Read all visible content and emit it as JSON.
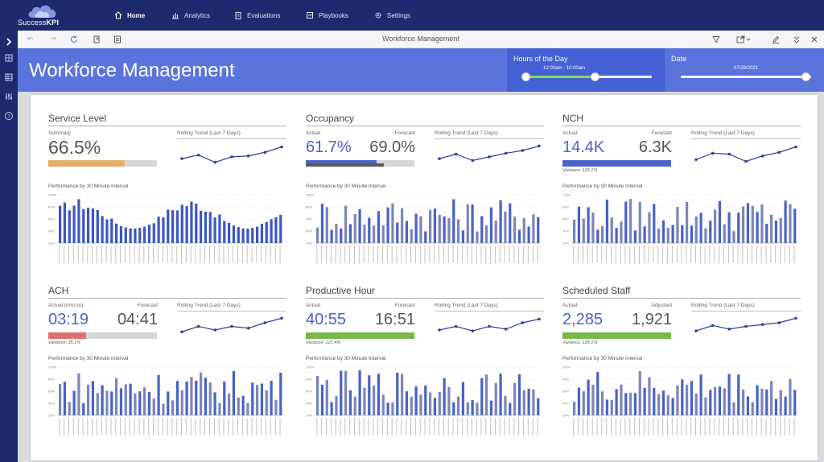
{
  "app": {
    "logo_prefix": "Success",
    "logo_bold": "KPI"
  },
  "nav": [
    {
      "label": "Home",
      "icon": "home-icon",
      "active": true
    },
    {
      "label": "Analytics",
      "icon": "bar-chart-icon",
      "active": false
    },
    {
      "label": "Evaluations",
      "icon": "clipboard-icon",
      "active": false
    },
    {
      "label": "Playbooks",
      "icon": "book-icon",
      "active": false
    },
    {
      "label": "Settings",
      "icon": "gear-icon",
      "active": false
    }
  ],
  "toolbar": {
    "title": "Workforce Management"
  },
  "header": {
    "title": "Workforce Management",
    "hours": {
      "label": "Hours of the Day",
      "range": "12:00am - 10:00am",
      "start": 0.0,
      "end": 0.55
    },
    "date": {
      "label": "Date",
      "value": "07/28/2021",
      "position": 1.0
    }
  },
  "colors": {
    "accent_blue": "#4a64c8",
    "gold": "#e3b06b",
    "red": "#e07070",
    "green": "#78b84a",
    "dark": "#5a5a5a",
    "nav": "#1e2a6e",
    "header": "#5b73dc"
  },
  "cards": [
    {
      "title": "Service Level",
      "label_left": "Summary",
      "value_left": "66.5%",
      "label_right": "",
      "value_right": "",
      "bar_fraction": 0.7,
      "bar_color": "gold",
      "variance": "",
      "trend_label": "Rolling Trend (Last 7 Days)",
      "trend": [
        30,
        38,
        22,
        34,
        36,
        44,
        56
      ],
      "perf_label": "Performance by 30 Minute Interval",
      "yticks": [
        "100%",
        "80%",
        "60%",
        "40%",
        "20%"
      ]
    },
    {
      "title": "Occupancy",
      "label_left": "Actual",
      "value_left": "61.7%",
      "label_right": "Forecast",
      "value_right": "69.0%",
      "bar_fraction": 0.65,
      "bar_color": "blue",
      "variance": "",
      "trend_label": "Rolling Trend (Last 7 Days)",
      "trend": [
        30,
        40,
        26,
        34,
        42,
        48,
        58
      ],
      "perf_label": "Performance by 30 Minute Interval",
      "yticks": [
        "100%",
        "80%",
        "60%",
        "40%",
        "20%"
      ]
    },
    {
      "title": "NCH",
      "label_left": "Actual",
      "value_left": "14.4K",
      "label_right": "Forecast",
      "value_right": "6.3K",
      "bar_fraction": 1.0,
      "bar_color": "blue",
      "variance": "Variance: 129.1%",
      "trend_label": "Rolling Trend (Last 7 Days)",
      "trend": [
        28,
        42,
        40,
        24,
        36,
        44,
        56
      ],
      "perf_label": "Performance by 30 Minute Interval",
      "yticks": [
        "100%",
        "80%",
        "60%",
        "40%",
        "20%"
      ]
    },
    {
      "title": "ACH",
      "label_left": "Actual (mm:ss)",
      "value_left": "03:19",
      "label_right": "Forecast",
      "value_right": "04:41",
      "bar_fraction": 0.35,
      "bar_color": "red",
      "variance": "Variance: 35.1%",
      "trend_label": "Rolling Trend (Last 7 Days)",
      "trend": [
        28,
        40,
        32,
        40,
        36,
        48,
        58
      ],
      "perf_label": "Performance by 30 Minute Interval",
      "yticks": [
        "100%",
        "80%",
        "60%",
        "40%",
        "20%"
      ]
    },
    {
      "title": "Productive Hour",
      "label_left": "Actual",
      "value_left": "40:55",
      "label_right": "Forecast",
      "value_right": "16:51",
      "bar_fraction": 1.0,
      "bar_color": "green",
      "variance": "Variance: 121.4%",
      "trend_label": "Rolling Trend (Last 7 Days)",
      "trend": [
        32,
        40,
        30,
        40,
        34,
        48,
        56
      ],
      "perf_label": "Performance by 30 Minute Interval",
      "yticks": [
        "100%",
        "80%",
        "60%",
        "40%",
        "20%"
      ]
    },
    {
      "title": "Scheduled Staff",
      "label_left": "Actual",
      "value_left": "2,285",
      "label_right": "Adjusted",
      "value_right": "1,921",
      "bar_fraction": 1.0,
      "bar_color": "green",
      "variance": "Variance: 128.1%",
      "trend_label": "Rolling Trend (Last 7 Days)",
      "trend": [
        30,
        42,
        34,
        40,
        44,
        48,
        58
      ],
      "perf_label": "Performance by 30 Minute Interval",
      "yticks": [
        "100%",
        "80%",
        "60%",
        "40%",
        "20%"
      ]
    }
  ]
}
